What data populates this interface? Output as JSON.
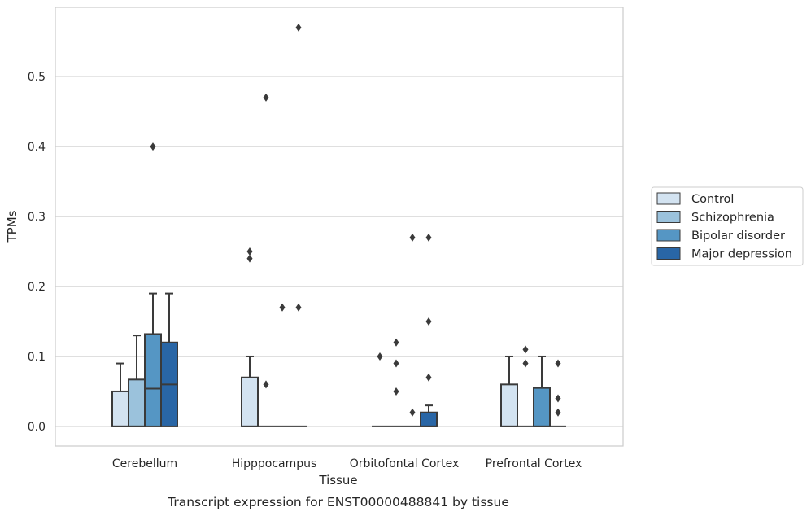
{
  "caption": "Transcript expression for ENST00000488841 by tissue",
  "chart_data": {
    "type": "box",
    "xlabel": "Tissue",
    "ylabel": "TPMs",
    "ylim": [
      -0.028,
      0.599
    ],
    "yticks": [
      "0.0",
      "0.1",
      "0.2",
      "0.3",
      "0.4",
      "0.5"
    ],
    "grid": "horizontal",
    "legend_position": "right",
    "categories": [
      "Cerebellum",
      "Hipppocampus",
      "Orbitofontal Cortex",
      "Prefrontal Cortex"
    ],
    "series": [
      {
        "name": "Control",
        "color": "#d3e3f1",
        "boxes": [
          {
            "q1": 0,
            "median": 0,
            "q3": 0.05,
            "whisker_low": 0,
            "whisker_high": 0.09,
            "fliers": []
          },
          {
            "q1": 0,
            "median": 0,
            "q3": 0.07,
            "whisker_low": 0,
            "whisker_high": 0.1,
            "fliers": [
              0.24,
              0.25
            ]
          },
          {
            "q1": 0,
            "median": 0,
            "q3": 0,
            "whisker_low": 0,
            "whisker_high": 0,
            "fliers": [
              0.1
            ]
          },
          {
            "q1": 0,
            "median": 0,
            "q3": 0.06,
            "whisker_low": 0,
            "whisker_high": 0.1,
            "fliers": []
          }
        ]
      },
      {
        "name": "Schizophrenia",
        "color": "#9bc2dc",
        "boxes": [
          {
            "q1": 0,
            "median": 0,
            "q3": 0.067,
            "whisker_low": 0,
            "whisker_high": 0.13,
            "fliers": []
          },
          {
            "q1": 0,
            "median": 0,
            "q3": 0,
            "whisker_low": 0,
            "whisker_high": 0,
            "fliers": [
              0.06,
              0.47
            ]
          },
          {
            "q1": 0,
            "median": 0,
            "q3": 0,
            "whisker_low": 0,
            "whisker_high": 0,
            "fliers": [
              0.05,
              0.09,
              0.12
            ]
          },
          {
            "q1": 0,
            "median": 0,
            "q3": 0,
            "whisker_low": 0,
            "whisker_high": 0,
            "fliers": [
              0.09,
              0.11
            ]
          }
        ]
      },
      {
        "name": "Bipolar disorder",
        "color": "#5596c4",
        "boxes": [
          {
            "q1": 0,
            "median": 0.054,
            "q3": 0.132,
            "whisker_low": 0,
            "whisker_high": 0.19,
            "fliers": [
              0.4
            ]
          },
          {
            "q1": 0,
            "median": 0,
            "q3": 0,
            "whisker_low": 0,
            "whisker_high": 0,
            "fliers": [
              0.17
            ]
          },
          {
            "q1": 0,
            "median": 0,
            "q3": 0,
            "whisker_low": 0,
            "whisker_high": 0,
            "fliers": [
              0.02,
              0.27
            ]
          },
          {
            "q1": 0,
            "median": 0,
            "q3": 0.055,
            "whisker_low": 0,
            "whisker_high": 0.1,
            "fliers": []
          }
        ]
      },
      {
        "name": "Major depression",
        "color": "#2966a6",
        "boxes": [
          {
            "q1": 0,
            "median": 0.06,
            "q3": 0.12,
            "whisker_low": 0,
            "whisker_high": 0.19,
            "fliers": []
          },
          {
            "q1": 0,
            "median": 0,
            "q3": 0,
            "whisker_low": 0,
            "whisker_high": 0,
            "fliers": [
              0.17,
              0.57
            ]
          },
          {
            "q1": 0,
            "median": 0,
            "q3": 0.02,
            "whisker_low": 0,
            "whisker_high": 0.03,
            "fliers": [
              0.07,
              0.15,
              0.27
            ]
          },
          {
            "q1": 0,
            "median": 0,
            "q3": 0,
            "whisker_low": 0,
            "whisker_high": 0,
            "fliers": [
              0.02,
              0.04,
              0.09
            ]
          }
        ]
      }
    ]
  }
}
